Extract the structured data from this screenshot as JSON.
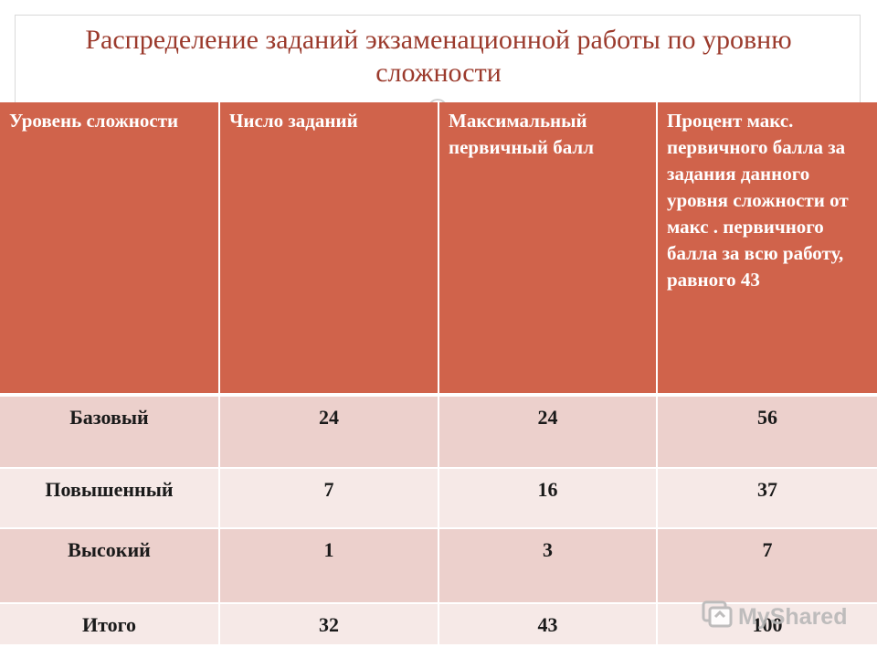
{
  "slide": {
    "title": "Распределение заданий экзаменационной работы по уровню сложности"
  },
  "table": {
    "headers": [
      "Уровень сложности",
      "Число заданий",
      "Максимальный первичный балл",
      "Процент макс. первичного балла за задания данного уровня сложности  от макс . первичного балла за всю работу,  равного 43"
    ],
    "rows": [
      [
        "Базовый",
        "24",
        "24",
        "56"
      ],
      [
        "Повышенный",
        "7",
        "16",
        "37"
      ],
      [
        "Высокий",
        "1",
        "3",
        "7"
      ],
      [
        "Итого",
        "32",
        "43",
        "100"
      ]
    ]
  },
  "watermark": {
    "text": "MyShared",
    "icon": "myshared-logo-icon"
  },
  "colors": {
    "header_bg": "#d0634b",
    "row_dark": "#ecd0cc",
    "row_light": "#f6e9e7",
    "title_text": "#9b3a2c"
  }
}
